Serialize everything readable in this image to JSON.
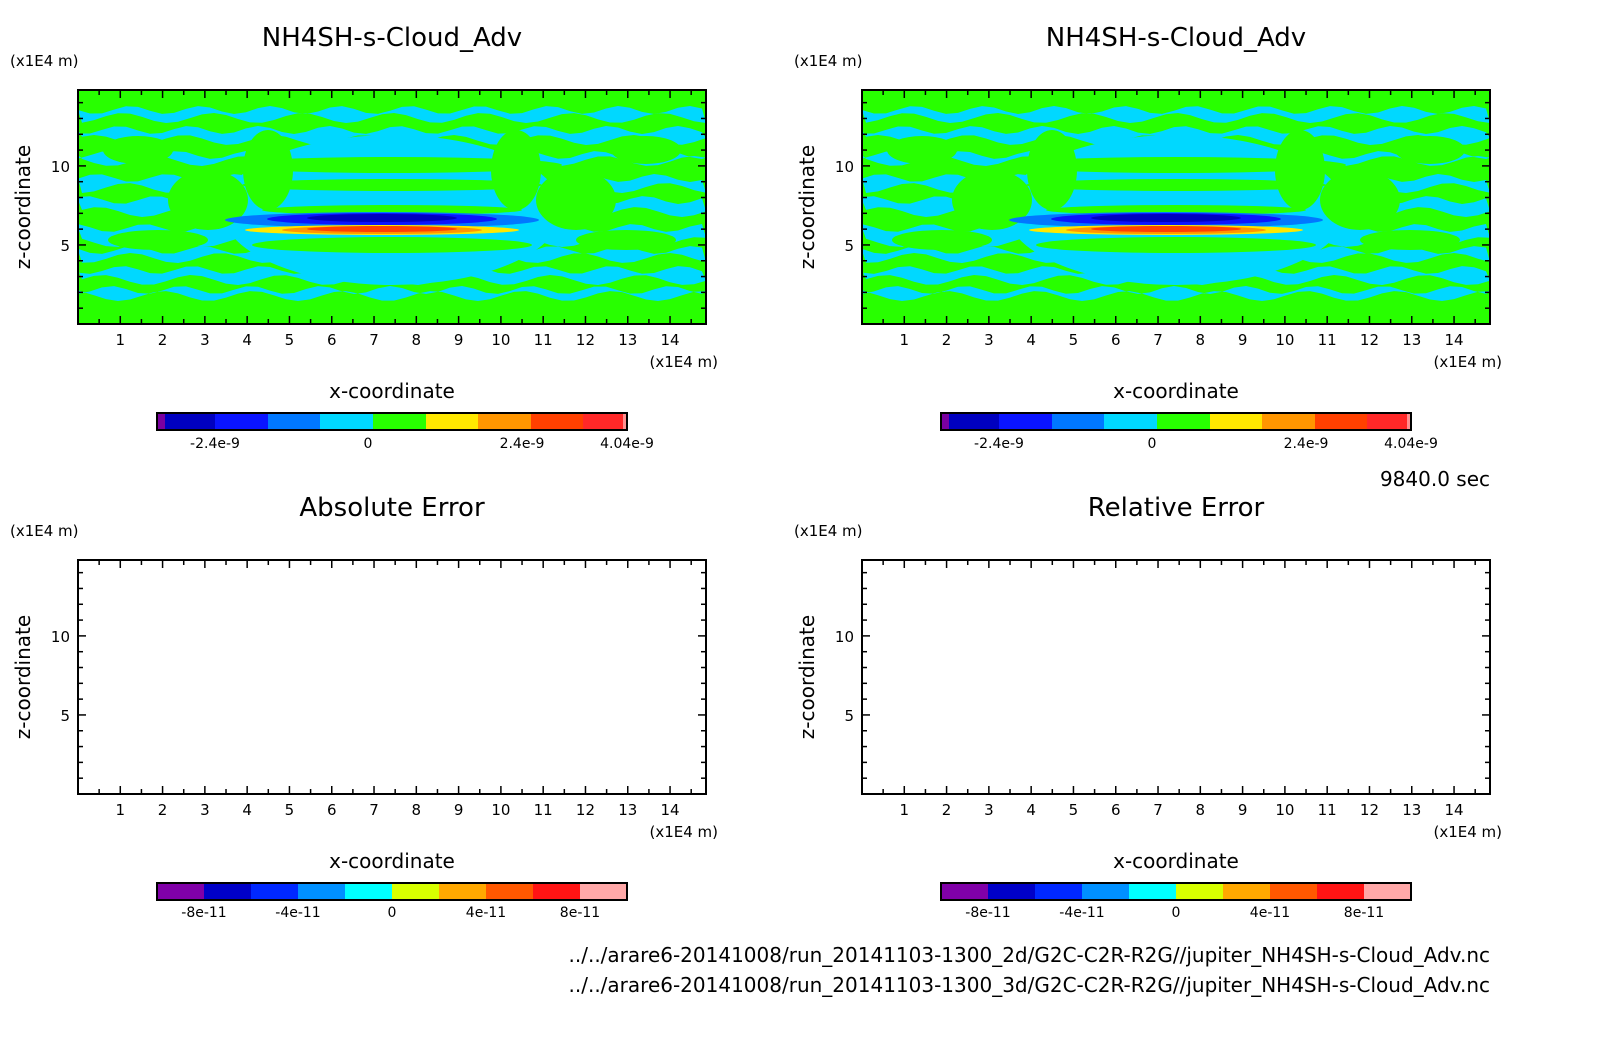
{
  "time_label": "9840.0 sec",
  "file_paths": [
    "../../arare6-20141008/run_20141103-1300_2d/G2C-C2R-R2G//jupiter_NH4SH-s-Cloud_Adv.nc",
    "../../arare6-20141008/run_20141103-1300_3d/G2C-C2R-R2G//jupiter_NH4SH-s-Cloud_Adv.nc"
  ],
  "chart_data": [
    {
      "type": "heatmap",
      "title": "NH4SH-s-Cloud_Adv",
      "xlabel": "x-coordinate",
      "ylabel": "z-coordinate",
      "x_unit": "(x1E4 m)",
      "y_unit": "(x1E4 m)",
      "xlim": [
        0,
        14.85
      ],
      "ylim": [
        0,
        14.8
      ],
      "xticks": [
        1,
        2,
        3,
        4,
        5,
        6,
        7,
        8,
        9,
        10,
        11,
        12,
        13,
        14
      ],
      "yticks": [
        5,
        10
      ],
      "field": "contour field: background ~0 (green/cyan bands), negative core (blue) near x=7.5 z=6.6, positive core (red) near x=7.5 z=6.1",
      "colorbar": {
        "colors": [
          "#7a00a0",
          "#0000c0",
          "#0a14ff",
          "#0078ff",
          "#00d8ff",
          "#28ff00",
          "#ffe800",
          "#ff9600",
          "#ff4000",
          "#ff2828",
          "#ff9090"
        ],
        "tick_labels": [
          "-2.4e-9",
          "0",
          "2.4e-9",
          "4.04e-9"
        ],
        "tick_values": [
          -2.4e-09,
          0,
          2.4e-09,
          4.04e-09
        ],
        "range": [
          -4.04e-09,
          4.04e-09
        ]
      }
    },
    {
      "type": "heatmap",
      "title": "NH4SH-s-Cloud_Adv",
      "xlabel": "x-coordinate",
      "ylabel": "z-coordinate",
      "x_unit": "(x1E4 m)",
      "y_unit": "(x1E4 m)",
      "xlim": [
        0,
        14.85
      ],
      "ylim": [
        0,
        14.8
      ],
      "xticks": [
        1,
        2,
        3,
        4,
        5,
        6,
        7,
        8,
        9,
        10,
        11,
        12,
        13,
        14
      ],
      "yticks": [
        5,
        10
      ],
      "field": "identical to left panel",
      "colorbar": {
        "colors": [
          "#7a00a0",
          "#0000c0",
          "#0a14ff",
          "#0078ff",
          "#00d8ff",
          "#28ff00",
          "#ffe800",
          "#ff9600",
          "#ff4000",
          "#ff2828",
          "#ff9090"
        ],
        "tick_labels": [
          "-2.4e-9",
          "0",
          "2.4e-9",
          "4.04e-9"
        ],
        "tick_values": [
          -2.4e-09,
          0,
          2.4e-09,
          4.04e-09
        ],
        "range": [
          -4.04e-09,
          4.04e-09
        ]
      }
    },
    {
      "type": "heatmap",
      "title": "Absolute Error",
      "xlabel": "x-coordinate",
      "ylabel": "z-coordinate",
      "x_unit": "(x1E4 m)",
      "y_unit": "(x1E4 m)",
      "xlim": [
        0,
        14.85
      ],
      "ylim": [
        0,
        14.8
      ],
      "xticks": [
        1,
        2,
        3,
        4,
        5,
        6,
        7,
        8,
        9,
        10,
        11,
        12,
        13,
        14
      ],
      "yticks": [
        5,
        10
      ],
      "field": "empty (no contours)",
      "colorbar": {
        "colors": [
          "#8000a8",
          "#0000c8",
          "#0028ff",
          "#0090ff",
          "#00ffff",
          "#d8ff00",
          "#ffa800",
          "#ff5800",
          "#ff1414",
          "#ffa8a8"
        ],
        "tick_labels": [
          "-8e-11",
          "-4e-11",
          "0",
          "4e-11",
          "8e-11"
        ],
        "tick_values": [
          -8e-11,
          -4e-11,
          0,
          4e-11,
          8e-11
        ],
        "range": [
          -1e-10,
          1e-10
        ]
      }
    },
    {
      "type": "heatmap",
      "title": "Relative Error",
      "xlabel": "x-coordinate",
      "ylabel": "z-coordinate",
      "x_unit": "(x1E4 m)",
      "y_unit": "(x1E4 m)",
      "xlim": [
        0,
        14.85
      ],
      "ylim": [
        0,
        14.8
      ],
      "xticks": [
        1,
        2,
        3,
        4,
        5,
        6,
        7,
        8,
        9,
        10,
        11,
        12,
        13,
        14
      ],
      "yticks": [
        5,
        10
      ],
      "field": "empty (no contours)",
      "colorbar": {
        "colors": [
          "#8000a8",
          "#0000c8",
          "#0028ff",
          "#0090ff",
          "#00ffff",
          "#d8ff00",
          "#ffa800",
          "#ff5800",
          "#ff1414",
          "#ffa8a8"
        ],
        "tick_labels": [
          "-8e-11",
          "-4e-11",
          "0",
          "4e-11",
          "8e-11"
        ],
        "tick_values": [
          -8e-11,
          -4e-11,
          0,
          4e-11,
          8e-11
        ],
        "range": [
          -1e-10,
          1e-10
        ]
      }
    }
  ]
}
